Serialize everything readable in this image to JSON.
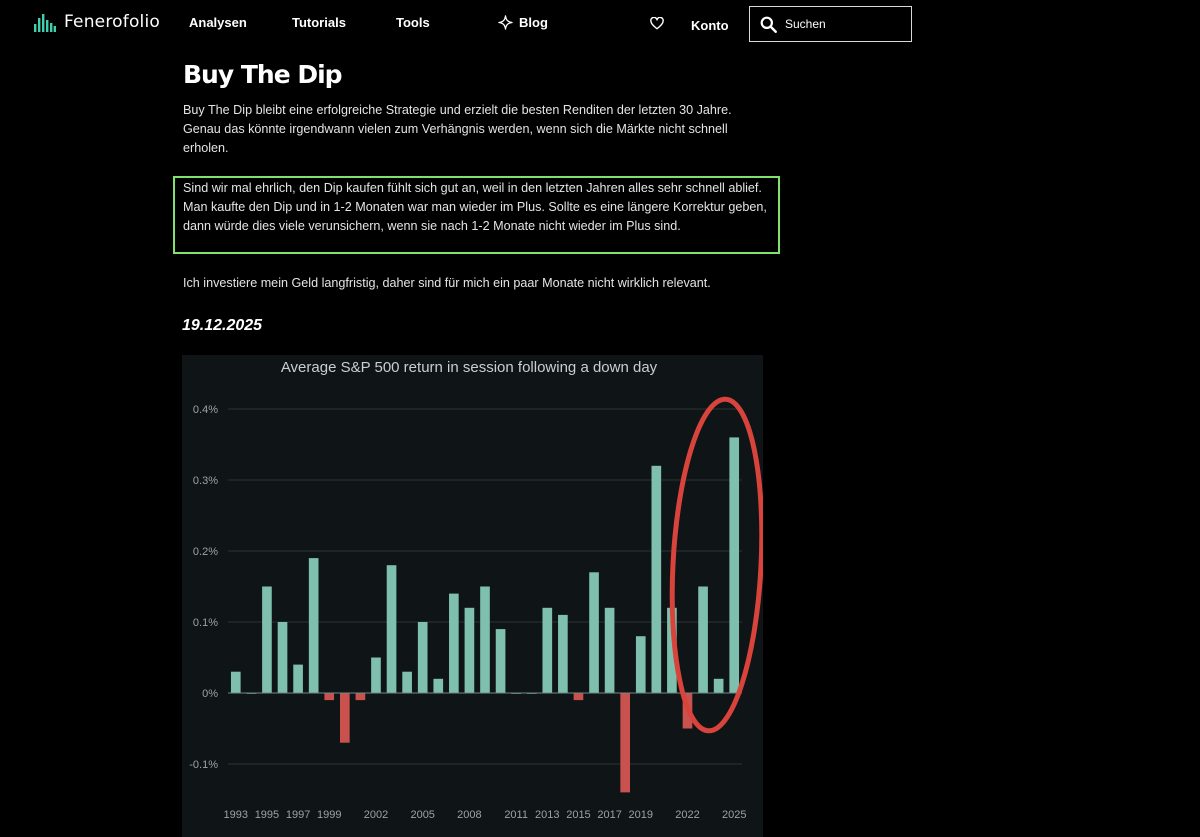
{
  "nav": {
    "brand": "Fenerofolio",
    "links": [
      "Analysen",
      "Tutorials",
      "Tools",
      "Blog"
    ],
    "konto": "Konto",
    "search_placeholder": "Suchen",
    "icons": {
      "logo": "bar-chart-logo-icon",
      "blog": "sparkle-icon",
      "favorites": "heart-icon",
      "search": "search-icon"
    }
  },
  "article": {
    "title": "Buy The Dip",
    "paragraph1": "Buy The Dip bleibt eine erfolgreiche Strategie und erzielt die besten Renditen der letzten 30 Jahre. Genau das könnte irgendwann vielen zum Verhängnis werden, wenn sich die Märkte nicht schnell erholen.",
    "paragraph2": "Sind wir mal ehrlich, den Dip kaufen fühlt sich gut an, weil in den letzten Jahren alles sehr schnell ablief. Man kaufte den Dip und in 1-2 Monaten war man wieder im Plus. Sollte es eine längere Korrektur geben, dann würde dies viele verunsichern, wenn sie nach 1-2 Monate nicht wieder im Plus sind.",
    "paragraph3": "Ich investiere mein Geld langfristig, daher sind für mich ein paar Monate nicht wirklich relevant.",
    "date": "19.12.2025",
    "highlight_color": "#7ee36a"
  },
  "chart_data": {
    "type": "bar",
    "title": "Average S&P 500 return in session following a down day",
    "xlabel": "",
    "ylabel": "",
    "ylim": [
      -0.0017,
      0.0042
    ],
    "y_ticks": [
      0.004,
      0.003,
      0.002,
      0.001,
      0,
      -0.001
    ],
    "y_tick_labels": [
      "0.4%",
      "0.3%",
      "0.2%",
      "0.1%",
      "0%",
      "-0.1%"
    ],
    "categories": [
      "1993",
      "1994",
      "1995",
      "1996",
      "1997",
      "1998",
      "1999",
      "2000",
      "2001",
      "2002",
      "2003",
      "2004",
      "2005",
      "2006",
      "2007",
      "2008",
      "2009",
      "2010",
      "2011",
      "2012",
      "2013",
      "2014",
      "2015",
      "2016",
      "2017",
      "2018",
      "2019",
      "2020",
      "2021",
      "2022",
      "2023",
      "2024",
      "2025"
    ],
    "x_tick_labels": [
      "1993",
      "",
      "1995",
      "",
      "1997",
      "",
      "1999",
      "",
      "",
      "2002",
      "",
      "",
      "2005",
      "",
      "",
      "2008",
      "",
      "",
      "2011",
      "",
      "2013",
      "",
      "2015",
      "",
      "2017",
      "",
      "2019",
      "",
      "",
      "2022",
      "",
      "",
      "2025"
    ],
    "values": [
      0.0003,
      0.0,
      0.0015,
      0.001,
      0.0004,
      0.0019,
      -0.0001,
      -0.0007,
      -0.0001,
      0.0005,
      0.0018,
      0.0003,
      0.001,
      0.0002,
      0.0014,
      0.0012,
      0.0015,
      0.0009,
      0.0,
      0.0,
      0.0012,
      0.0011,
      -0.0001,
      0.0017,
      0.0012,
      -0.0014,
      0.0008,
      0.0032,
      0.0012,
      -0.0005,
      0.0015,
      0.0002,
      0.0036
    ],
    "grid": true,
    "colors": {
      "positive": "#7fbfad",
      "negative": "#c9524f",
      "background": "#0f1416",
      "grid": "#2c3336",
      "annotation": "#d8443c"
    },
    "annotation": "red-ellipse-around-2022-2025"
  }
}
